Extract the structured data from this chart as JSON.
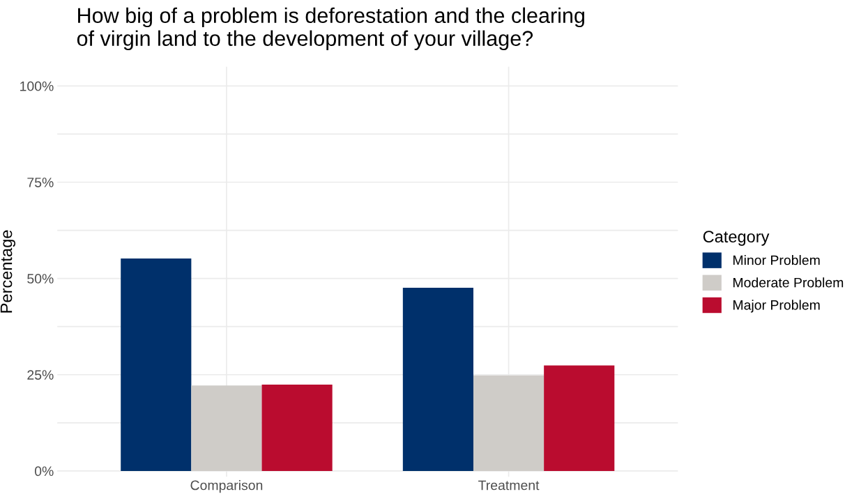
{
  "chart_data": {
    "type": "bar",
    "title": "How big of a problem is deforestation and the clearing\nof virgin land to the development of your village?",
    "ylabel": "Percentage",
    "legend_title": "Category",
    "legend": "right",
    "categories": [
      "Comparison",
      "Treatment"
    ],
    "series": [
      {
        "name": "Minor Problem",
        "color": "#00306b",
        "values": [
          55.2,
          47.6
        ]
      },
      {
        "name": "Moderate Problem",
        "color": "#cfccc8",
        "values": [
          22.2,
          24.8
        ]
      },
      {
        "name": "Major Problem",
        "color": "#ba0c2f",
        "values": [
          22.4,
          27.4
        ]
      }
    ],
    "ylim": [
      -1.5,
      105
    ],
    "yticks": [
      {
        "value": 0,
        "label": "0%"
      },
      {
        "value": 12.5,
        "label": null
      },
      {
        "value": 25,
        "label": "25%"
      },
      {
        "value": 37.5,
        "label": null
      },
      {
        "value": 50,
        "label": "50%"
      },
      {
        "value": 62.5,
        "label": null
      },
      {
        "value": 75,
        "label": "75%"
      },
      {
        "value": 87.5,
        "label": null
      },
      {
        "value": 100,
        "label": "100%"
      }
    ],
    "grid": true
  }
}
